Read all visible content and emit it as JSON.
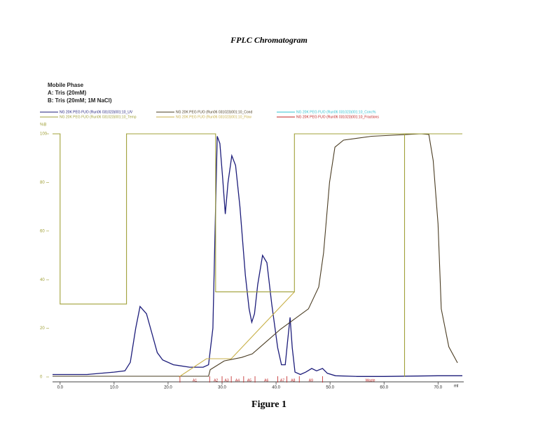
{
  "chart_data": {
    "type": "line",
    "title": "FPLC Chromatogram",
    "caption": "Figure 1",
    "notes": [
      "Mobile Phase",
      "A: Tris (20mM)",
      "B: Tris (20mM; 1M NaCl)"
    ],
    "y_label": "%B",
    "x_label": "ml",
    "xlim": [
      -1.4,
      74.5
    ],
    "ylim": [
      0,
      100
    ],
    "xticks": [
      {
        "value": 0,
        "label": "0.0"
      },
      {
        "value": 10,
        "label": "10.0"
      },
      {
        "value": 20,
        "label": "20.0"
      },
      {
        "value": 30,
        "label": "30.0"
      },
      {
        "value": 40,
        "label": "40.0"
      },
      {
        "value": 50,
        "label": "50.0"
      },
      {
        "value": 60,
        "label": "60.0"
      },
      {
        "value": 70,
        "label": "70.0"
      }
    ],
    "yticks": [
      0,
      20,
      40,
      60,
      80,
      100
    ],
    "series": [
      {
        "name": "NG 20K PEG FUO (Run06 031023)001:10_UV",
        "color": "#1c1c7a",
        "x": [
          -1.4,
          5,
          10,
          12,
          13,
          14,
          14.8,
          16,
          17,
          18,
          19,
          21,
          24,
          26.5,
          27.5,
          28.3,
          28.8,
          29.1,
          29.6,
          30.1,
          30.6,
          31.1,
          31.8,
          32.5,
          33.3,
          34.3,
          35,
          35.5,
          36,
          36.6,
          37.5,
          38.3,
          39.2,
          40.3,
          41,
          41.7,
          42.1,
          42.6,
          43,
          43.5,
          44.5,
          45.5,
          46.6,
          47.5,
          48.6,
          49.5,
          51,
          55,
          60,
          70,
          74.5
        ],
        "values": [
          1,
          1,
          2,
          2.5,
          6,
          20,
          29,
          26,
          18,
          10,
          7,
          5,
          4,
          4,
          5,
          20,
          70,
          99,
          96,
          82,
          67,
          80,
          91,
          87,
          70,
          42,
          28,
          22.5,
          26,
          38,
          50,
          47,
          30,
          12,
          5,
          5,
          14,
          24.5,
          12,
          2,
          1,
          2,
          3.5,
          2.5,
          3.5,
          1.5,
          0.5,
          0.2,
          0.2,
          0.5,
          0.5
        ]
      },
      {
        "name": "NG 20K PEG FUO (Run06 031023)001:10_Cond",
        "color": "#4a3c22",
        "x": [
          -1.4,
          27.5,
          27.8,
          30.4,
          33.6,
          35.6,
          40.8,
          46,
          47.9,
          48.8,
          49.9,
          50.9,
          52.5,
          57.7,
          66.8,
          68.3,
          69.1,
          70,
          70.6,
          72,
          73.6
        ],
        "values": [
          0.3,
          0.3,
          3,
          6.6,
          8,
          9.5,
          19.6,
          28,
          37,
          51,
          80,
          94.5,
          97.4,
          99,
          100,
          99.7,
          89,
          63,
          28,
          12.4,
          5.8
        ]
      },
      {
        "name": "NG 20K PEG FUO (Run06 031023)001:10_Conc%",
        "color": "#30c0d0"
      },
      {
        "name": "NG 20K PEG FUO (Run06 031023)001:10_Temp",
        "color": "#a0a038",
        "x": [
          -1.4,
          0,
          0,
          12.3,
          12.3,
          28.8,
          28.8,
          43.4,
          43.4,
          63.8,
          63.8,
          63.8,
          74.5
        ],
        "values": [
          100,
          100,
          30,
          30,
          100,
          100,
          35,
          35,
          100,
          100,
          0,
          100,
          100
        ]
      },
      {
        "name": "NG 20K PEG FUO (Run06 031023)001:10_Flow",
        "color": "#c8b048",
        "x": [
          22,
          27.1,
          31.7,
          43.4
        ],
        "values": [
          0,
          7.5,
          7.5,
          35
        ]
      },
      {
        "name": "NG 20K PEG FUO (Run06 031023)001:10_Fractions",
        "color": "#c02020",
        "x": [
          22.2,
          27.7,
          30,
          31.7,
          34,
          36.1,
          40.3,
          42,
          44.3,
          48.6
        ],
        "labels": [
          "A1",
          "A2",
          "A3",
          "A4",
          "A5",
          "A6",
          "A7",
          "A8",
          "A9",
          "Waste"
        ]
      }
    ]
  }
}
